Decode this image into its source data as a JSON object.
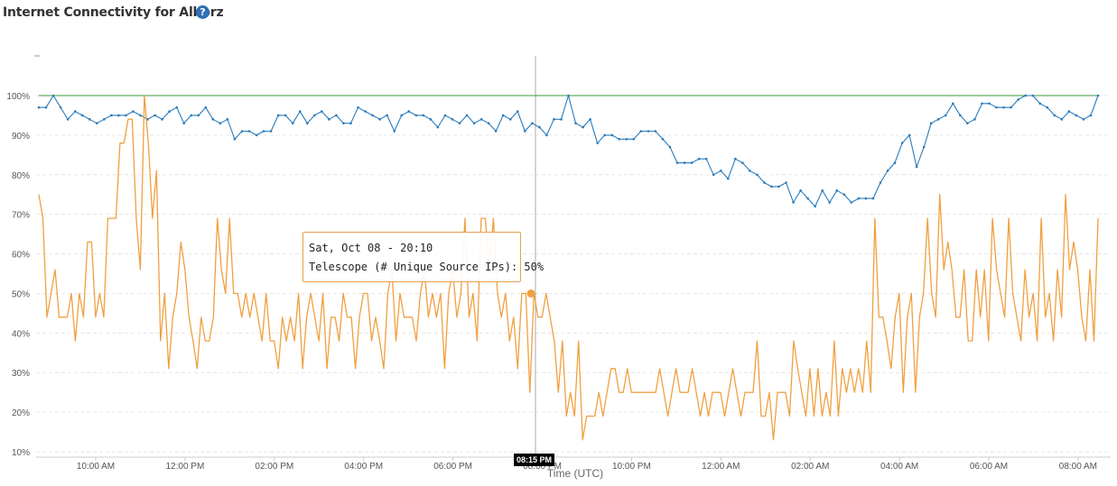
{
  "header": {
    "title": "Internet Connectivity for Alborz",
    "help_icon": "help-question-icon"
  },
  "tooltip": {
    "date": "Sat, Oct 08 - 20:10",
    "text": "Telescope (# Unique Source IPs): 50%"
  },
  "crosshair": {
    "label": "08:15 PM"
  },
  "colors": {
    "blue_series": "#2b7bba",
    "orange_series": "#f0a040",
    "green_series": "#3a9a3a",
    "grid": "#e6e6e6"
  },
  "chart_data": {
    "type": "line",
    "xlabel": "Time (UTC)",
    "ylabel": "",
    "ylim": [
      10,
      105
    ],
    "y_ticks": [
      "10%",
      "20%",
      "30%",
      "40%",
      "50%",
      "60%",
      "70%",
      "80%",
      "90%",
      "100%"
    ],
    "x_ticks": [
      "10:00 AM",
      "12:00 PM",
      "02:00 PM",
      "04:00 PM",
      "06:00 PM",
      "08:00 PM",
      "10:00 PM",
      "12:00 AM",
      "02:00 AM",
      "04:00 AM",
      "06:00 AM",
      "08:00 AM"
    ],
    "grid": true,
    "series": [
      {
        "name": "",
        "color": "#3a9a3a",
        "values": [
          100,
          100
        ]
      },
      {
        "name": "",
        "color": "#2b7bba",
        "values": [
          97,
          97,
          100,
          97,
          94,
          96,
          95,
          94,
          93,
          94,
          95,
          95,
          95,
          96,
          95,
          94,
          95,
          94,
          96,
          97,
          93,
          95,
          95,
          97,
          94,
          93,
          94,
          89,
          91,
          91,
          90,
          91,
          91,
          95,
          95,
          93,
          96,
          93,
          95,
          96,
          94,
          95,
          93,
          93,
          97,
          96,
          95,
          94,
          95,
          91,
          95,
          96,
          95,
          95,
          94,
          92,
          95,
          94,
          93,
          95,
          93,
          94,
          93,
          91,
          95,
          94,
          96,
          91,
          93,
          92,
          90,
          94,
          94,
          100,
          93,
          92,
          94,
          88,
          90,
          90,
          89,
          89,
          89,
          91,
          91,
          91,
          89,
          87,
          83,
          83,
          83,
          84,
          84,
          80,
          81,
          79,
          84,
          83,
          81,
          80,
          78,
          77,
          77,
          78,
          73,
          76,
          74,
          72,
          76,
          73,
          76,
          75,
          73,
          74,
          74,
          74,
          78,
          81,
          83,
          88,
          90,
          82,
          87,
          93,
          94,
          95,
          98,
          95,
          93,
          94,
          98,
          98,
          97,
          97,
          97,
          99,
          100,
          100,
          98,
          97,
          95,
          94,
          96,
          95,
          94,
          95,
          100
        ]
      },
      {
        "name": "Telescope (# Unique Source IPs)",
        "color": "#f0a040",
        "values": [
          75,
          69,
          44,
          50,
          56,
          44,
          44,
          44,
          50,
          38,
          50,
          44,
          63,
          63,
          44,
          50,
          44,
          69,
          69,
          69,
          88,
          88,
          94,
          94,
          69,
          56,
          100,
          88,
          69,
          81,
          38,
          50,
          31,
          44,
          50,
          63,
          56,
          44,
          38,
          31,
          44,
          38,
          38,
          44,
          69,
          56,
          50,
          69,
          50,
          50,
          44,
          50,
          44,
          50,
          44,
          38,
          50,
          38,
          38,
          31,
          44,
          38,
          44,
          38,
          50,
          31,
          44,
          50,
          44,
          38,
          50,
          31,
          44,
          44,
          38,
          50,
          44,
          44,
          31,
          44,
          50,
          50,
          38,
          44,
          38,
          31,
          50,
          56,
          38,
          50,
          44,
          44,
          44,
          38,
          50,
          56,
          44,
          50,
          44,
          50,
          31,
          50,
          56,
          44,
          50,
          69,
          44,
          50,
          38,
          69,
          69,
          56,
          69,
          50,
          44,
          50,
          38,
          44,
          31,
          50,
          50,
          25,
          50,
          44,
          44,
          50,
          44,
          38,
          25,
          38,
          19,
          25,
          19,
          38,
          13,
          19,
          19,
          19,
          25,
          19,
          25,
          31,
          31,
          25,
          25,
          31,
          25,
          25,
          25,
          25,
          25,
          25,
          25,
          31,
          25,
          19,
          25,
          31,
          25,
          25,
          25,
          31,
          25,
          19,
          25,
          19,
          25,
          25,
          25,
          19,
          25,
          31,
          25,
          19,
          25,
          25,
          25,
          38,
          19,
          19,
          25,
          13,
          25,
          25,
          25,
          19,
          38,
          31,
          25,
          19,
          31,
          19,
          31,
          19,
          25,
          19,
          38,
          19,
          31,
          25,
          31,
          25,
          31,
          25,
          38,
          25,
          69,
          44,
          44,
          38,
          31,
          44,
          50,
          25,
          44,
          50,
          25,
          44,
          50,
          69,
          50,
          44,
          75,
          56,
          63,
          56,
          44,
          44,
          56,
          38,
          38,
          56,
          44,
          56,
          38,
          69,
          56,
          50,
          44,
          69,
          50,
          44,
          38,
          56,
          44,
          50,
          38,
          69,
          44,
          50,
          38,
          56,
          44,
          75,
          56,
          63,
          56,
          44,
          38,
          56,
          38,
          69
        ]
      }
    ]
  }
}
